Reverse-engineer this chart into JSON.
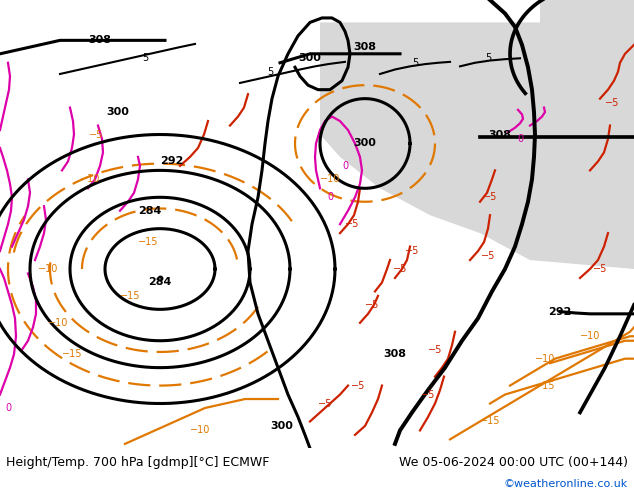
{
  "title_left": "Height/Temp. 700 hPa [gdmp][°C] ECMWF",
  "title_right": "We 05-06-2024 00:00 UTC (00+144)",
  "credit": "©weatheronline.co.uk",
  "bg_color_land": "#b8e096",
  "bg_color_sea": "#d8d8d8",
  "bg_color_figure": "#ffffff",
  "contour_height_color": "#000000",
  "contour_temp_warm_color": "#e07800",
  "contour_temp_cold_color": "#cc2200",
  "contour_temp_zero_color": "#dd00aa",
  "contour_temp_pos_color": "#000000",
  "font_size_bottom": 9,
  "font_size_labels": 8
}
